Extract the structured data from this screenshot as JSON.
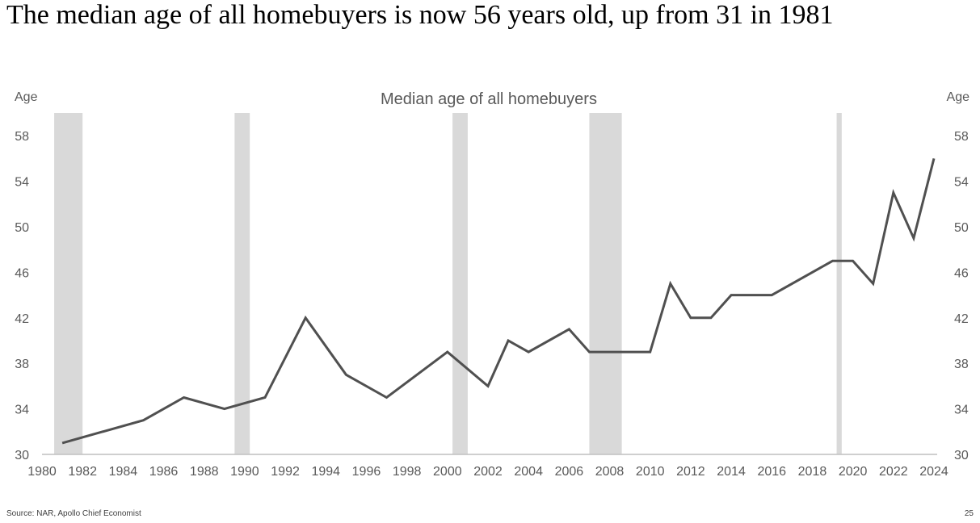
{
  "slide": {
    "headline": "The median age of all homebuyers is now 56 years old, up from 31 in 1981",
    "source": "Source: NAR, Apollo Chief Economist",
    "page_number": "25"
  },
  "chart_data": {
    "type": "line",
    "title": "Median age of all homebuyers",
    "ylabel_left": "Age",
    "ylabel_right": "Age",
    "xlim": [
      1980,
      2024
    ],
    "ylim": [
      30,
      60
    ],
    "yticks": [
      30,
      34,
      38,
      42,
      46,
      50,
      54,
      58
    ],
    "xticks": [
      1980,
      1982,
      1984,
      1986,
      1988,
      1990,
      1992,
      1994,
      1996,
      1998,
      2000,
      2002,
      2004,
      2006,
      2008,
      2010,
      2012,
      2014,
      2016,
      2018,
      2020,
      2022,
      2024
    ],
    "grid": false,
    "series": [
      {
        "color": "#505050",
        "points": [
          [
            1981,
            31
          ],
          [
            1985,
            33
          ],
          [
            1987,
            35
          ],
          [
            1989,
            34
          ],
          [
            1991,
            35
          ],
          [
            1993,
            42
          ],
          [
            1995,
            37
          ],
          [
            1997,
            35
          ],
          [
            2000,
            39
          ],
          [
            2002,
            36
          ],
          [
            2003,
            40
          ],
          [
            2004,
            39
          ],
          [
            2006,
            41
          ],
          [
            2007,
            39
          ],
          [
            2008,
            39
          ],
          [
            2009,
            39
          ],
          [
            2010,
            39
          ],
          [
            2011,
            45
          ],
          [
            2012,
            42
          ],
          [
            2013,
            42
          ],
          [
            2014,
            44
          ],
          [
            2015,
            44
          ],
          [
            2016,
            44
          ],
          [
            2019,
            47
          ],
          [
            2020,
            47
          ],
          [
            2021,
            45
          ],
          [
            2022,
            53
          ],
          [
            2023,
            49
          ],
          [
            2024,
            56
          ]
        ]
      }
    ],
    "shaded_periods": [
      {
        "start": 1980.6,
        "end": 1982.0
      },
      {
        "start": 1989.5,
        "end": 1990.25
      },
      {
        "start": 2000.25,
        "end": 2001.0
      },
      {
        "start": 2007.0,
        "end": 2008.6
      },
      {
        "start": 2019.2,
        "end": 2019.45
      }
    ],
    "shading_color": "#d9d9d9",
    "axis_color": "#bfbfbf",
    "text_color": "#595959"
  }
}
